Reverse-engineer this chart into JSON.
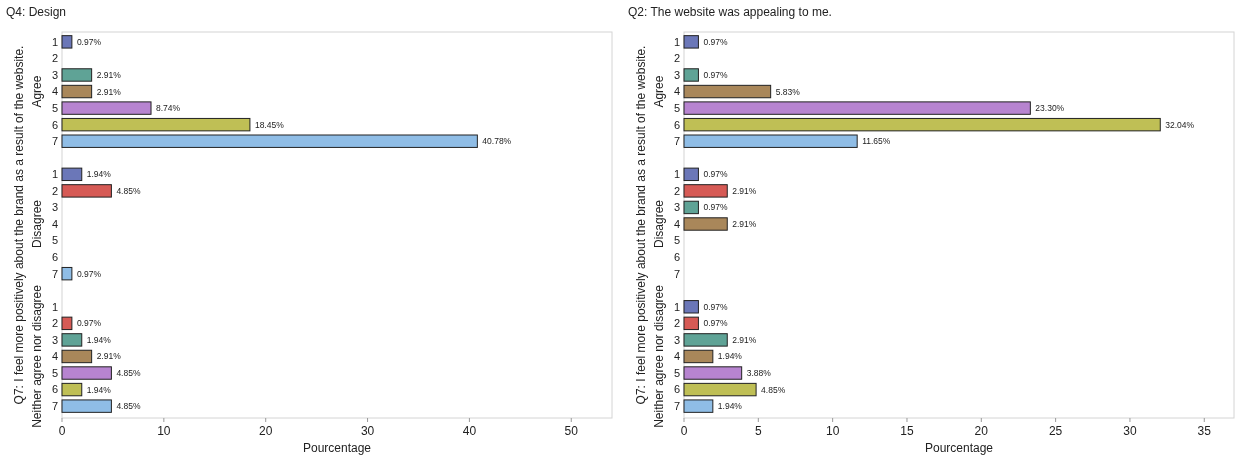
{
  "chart_data": [
    {
      "type": "bar",
      "orientation": "horizontal",
      "title": "Q4: Design",
      "xlabel": "Pourcentage",
      "ylabel": "Q7: I feel more positively about the brand as a result of the website.",
      "annotations": [
        "Agree",
        "Disagree",
        "Neither agree nor disagree"
      ],
      "categories": [
        "1",
        "2",
        "3",
        "4",
        "5",
        "6",
        "7",
        null,
        "1",
        "2",
        "3",
        "4",
        "5",
        "6",
        "7",
        null,
        "1",
        "2",
        "3",
        "4",
        "5",
        "6",
        "7"
      ],
      "values": [
        0.97,
        null,
        2.91,
        2.91,
        8.74,
        18.45,
        40.78,
        null,
        1.94,
        4.85,
        null,
        null,
        null,
        null,
        0.97,
        null,
        null,
        0.97,
        1.94,
        2.91,
        4.85,
        1.94,
        4.85
      ],
      "value_labels": [
        "0.97%",
        null,
        "2.91%",
        "2.91%",
        "8.74%",
        "18.45%",
        "40.78%",
        null,
        "1.94%",
        "4.85%",
        null,
        null,
        null,
        null,
        "0.97%",
        null,
        null,
        "0.97%",
        "1.94%",
        "2.91%",
        "4.85%",
        "1.94%",
        "4.85%"
      ],
      "colors": [
        "#6b77b8",
        null,
        "#5fa396",
        "#a9875a",
        "#b784d0",
        "#bfbf55",
        "#8fbde6",
        null,
        "#6b77b8",
        "#d65a55",
        null,
        null,
        null,
        null,
        "#8fbde6",
        null,
        null,
        "#d65a55",
        "#5fa396",
        "#a9875a",
        "#b784d0",
        "#bfbf55",
        "#8fbde6"
      ],
      "xlim": [
        0,
        54
      ],
      "xticks": [
        0,
        10,
        20,
        30,
        40,
        50
      ],
      "grid": false
    },
    {
      "type": "bar",
      "orientation": "horizontal",
      "title": "Q2: The website was appealing to me.",
      "xlabel": "Pourcentage",
      "ylabel": "Q7: I feel more positively about the brand as a result of the website.",
      "annotations": [
        "Agree",
        "Disagree",
        "Neither agree nor disagree"
      ],
      "categories": [
        "1",
        "2",
        "3",
        "4",
        "5",
        "6",
        "7",
        null,
        "1",
        "2",
        "3",
        "4",
        "5",
        "6",
        "7",
        null,
        "1",
        "2",
        "3",
        "4",
        "5",
        "6",
        "7"
      ],
      "values": [
        0.97,
        null,
        0.97,
        5.83,
        23.3,
        32.04,
        11.65,
        null,
        0.97,
        2.91,
        0.97,
        2.91,
        null,
        null,
        null,
        null,
        0.97,
        0.97,
        2.91,
        1.94,
        3.88,
        4.85,
        1.94
      ],
      "value_labels": [
        "0.97%",
        null,
        "0.97%",
        "5.83%",
        "23.30%",
        "32.04%",
        "11.65%",
        null,
        "0.97%",
        "2.91%",
        "0.97%",
        "2.91%",
        null,
        null,
        null,
        null,
        "0.97%",
        "0.97%",
        "2.91%",
        "1.94%",
        "3.88%",
        "4.85%",
        "1.94%"
      ],
      "colors": [
        "#6b77b8",
        null,
        "#5fa396",
        "#a9875a",
        "#b784d0",
        "#bfbf55",
        "#8fbde6",
        null,
        "#6b77b8",
        "#d65a55",
        "#5fa396",
        "#a9875a",
        null,
        null,
        null,
        null,
        "#6b77b8",
        "#d65a55",
        "#5fa396",
        "#a9875a",
        "#b784d0",
        "#bfbf55",
        "#8fbde6"
      ],
      "xlim": [
        0,
        37
      ],
      "xticks": [
        0,
        5,
        10,
        15,
        20,
        25,
        30,
        35
      ],
      "grid": false
    }
  ]
}
